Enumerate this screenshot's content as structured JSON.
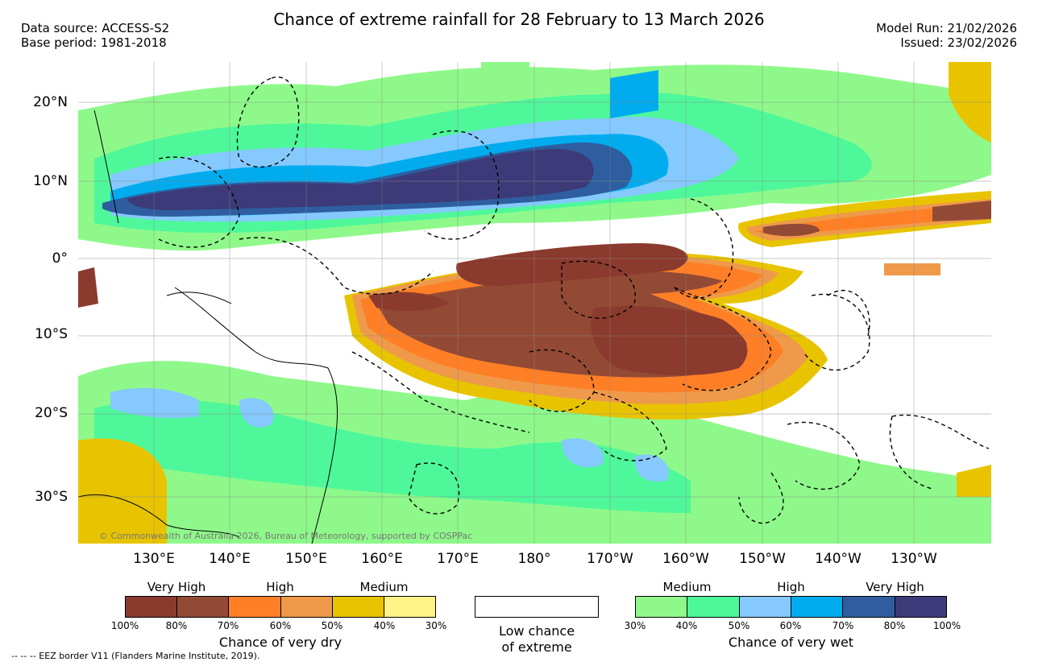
{
  "header": {
    "title": "Chance of extreme rainfall for 28 February to 13 March 2026",
    "data_source": "Data source: ACCESS-S2",
    "base_period": "Base period: 1981-2018",
    "model_run": "Model Run: 21/02/2026",
    "issued": "Issued: 23/02/2026"
  },
  "map": {
    "lat_labels": [
      "20°N",
      "10°N",
      "0°",
      "10°S",
      "20°S",
      "30°S"
    ],
    "lon_labels": [
      "130°E",
      "140°E",
      "150°E",
      "160°E",
      "170°E",
      "180°",
      "170°W",
      "160°W",
      "150°W",
      "140°W",
      "130°W"
    ],
    "copyright": "© Commonwealth of Australia 2026, Bureau of Meteorology, supported by COSPPac"
  },
  "legend": {
    "dry": {
      "categories": [
        "Very High",
        "High",
        "Medium"
      ],
      "ticks": [
        "100%",
        "80%",
        "70%",
        "60%",
        "50%",
        "40%",
        "30%"
      ],
      "colors": [
        "#8b3a2e",
        "#934a35",
        "#ff7f27",
        "#ee9a4a",
        "#e8c400",
        "#fff387"
      ],
      "title": "Chance of very dry"
    },
    "low": {
      "label_line1": "Low chance",
      "label_line2": "of extreme"
    },
    "wet": {
      "categories": [
        "Medium",
        "High",
        "Very High"
      ],
      "ticks": [
        "30%",
        "40%",
        "50%",
        "60%",
        "70%",
        "80%",
        "100%"
      ],
      "colors": [
        "#8ef98a",
        "#4ef89a",
        "#85c9ff",
        "#00acee",
        "#2e5ea0",
        "#3c3a78"
      ],
      "title": "Chance of very wet"
    }
  },
  "footnote": "-- -- -- EEZ border V11 (Flanders Marine Institute, 2019)."
}
